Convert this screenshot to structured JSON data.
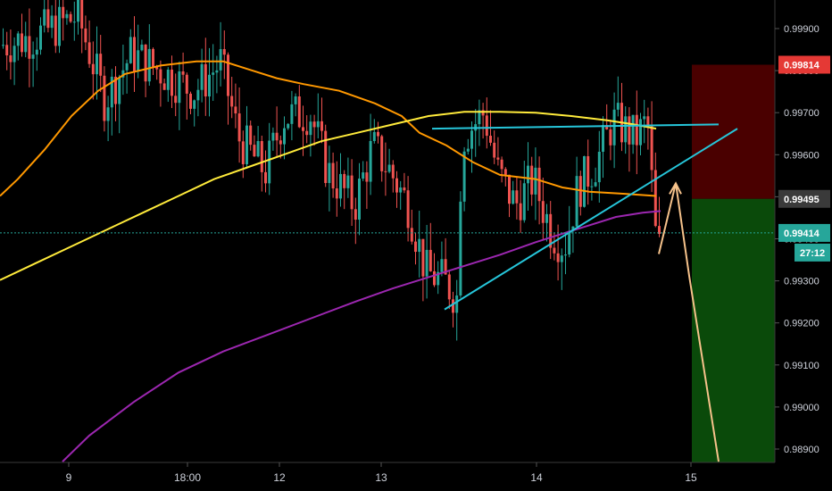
{
  "chart_data": {
    "type": "candlestick",
    "y_ticks": [
      "0.99900",
      "0.99800",
      "0.99700",
      "0.99600",
      "0.99500",
      "0.99400",
      "0.99300",
      "0.99200",
      "0.99100",
      "0.99000",
      "0.98900"
    ],
    "x_ticks": [
      "9",
      "18:00",
      "12",
      "13",
      "14",
      "15",
      "15"
    ],
    "ylim": [
      0.98862,
      0.99958
    ],
    "price_badges": [
      {
        "label": "0.99814",
        "value": 0.99814,
        "color": "#e53935",
        "text_color": "#ffffff"
      },
      {
        "label": "0.99495",
        "value": 0.99495,
        "color": "#3a3a3a",
        "text_color": "#ffffff"
      },
      {
        "label": "0.99414",
        "value": 0.99414,
        "color": "#26a69a",
        "text_color": "#ffffff"
      }
    ],
    "countdown": "27:12",
    "current_price": 0.99414,
    "risk_reward": {
      "stop": 0.99814,
      "entry": 0.99495,
      "target": 0.9887,
      "stop_color": "#4a0000",
      "target_color": "#0a4a0a"
    },
    "colors": {
      "up": "#26a69a",
      "down": "#ef5350",
      "ma_orange": "#ff9800",
      "ma_yellow": "#ffeb3b",
      "ma_purple": "#9c27b0",
      "trendline": "#26c6da",
      "projection": "#f6c28b",
      "background": "#000000",
      "axis_text": "#cfd3dc"
    },
    "series": [
      {
        "kind": "moving_average",
        "color_key": "ma_orange",
        "points": [
          [
            0,
            0.99502
          ],
          [
            20,
            0.99542
          ],
          [
            50,
            0.99612
          ],
          [
            80,
            0.99692
          ],
          [
            110,
            0.99752
          ],
          [
            140,
            0.99792
          ],
          [
            180,
            0.99812
          ],
          [
            220,
            0.99822
          ],
          [
            250,
            0.99822
          ],
          [
            280,
            0.99802
          ],
          [
            310,
            0.99782
          ],
          [
            340,
            0.99768
          ],
          [
            380,
            0.99752
          ],
          [
            420,
            0.99722
          ],
          [
            450,
            0.99692
          ],
          [
            470,
            0.99652
          ],
          [
            500,
            0.99622
          ],
          [
            530,
            0.99582
          ],
          [
            560,
            0.99552
          ],
          [
            600,
            0.99542
          ],
          [
            630,
            0.99522
          ],
          [
            660,
            0.99512
          ],
          [
            700,
            0.99507
          ],
          [
            735,
            0.99502
          ]
        ]
      },
      {
        "kind": "moving_average",
        "color_key": "ma_yellow",
        "points": [
          [
            0,
            0.99302
          ],
          [
            40,
            0.99342
          ],
          [
            80,
            0.99382
          ],
          [
            120,
            0.99422
          ],
          [
            160,
            0.99462
          ],
          [
            200,
            0.99502
          ],
          [
            240,
            0.99542
          ],
          [
            280,
            0.99572
          ],
          [
            320,
            0.99602
          ],
          [
            360,
            0.99632
          ],
          [
            400,
            0.99652
          ],
          [
            440,
            0.99672
          ],
          [
            480,
            0.99692
          ],
          [
            520,
            0.99702
          ],
          [
            560,
            0.99702
          ],
          [
            600,
            0.997
          ],
          [
            640,
            0.99692
          ],
          [
            680,
            0.99682
          ],
          [
            710,
            0.99672
          ],
          [
            735,
            0.99662
          ]
        ]
      },
      {
        "kind": "moving_average",
        "color_key": "ma_purple",
        "points": [
          [
            70,
            0.9887
          ],
          [
            100,
            0.98932
          ],
          [
            150,
            0.99012
          ],
          [
            200,
            0.99082
          ],
          [
            250,
            0.99132
          ],
          [
            300,
            0.99172
          ],
          [
            350,
            0.99212
          ],
          [
            400,
            0.99252
          ],
          [
            440,
            0.99282
          ],
          [
            470,
            0.99302
          ],
          [
            500,
            0.99322
          ],
          [
            530,
            0.99342
          ],
          [
            560,
            0.99362
          ],
          [
            600,
            0.99392
          ],
          [
            630,
            0.99412
          ],
          [
            660,
            0.99432
          ],
          [
            690,
            0.99452
          ],
          [
            720,
            0.99462
          ],
          [
            740,
            0.99466
          ]
        ]
      }
    ],
    "trendlines": [
      {
        "name": "resistance",
        "from": [
          484,
          0.99662
        ],
        "to": [
          805,
          0.99672
        ]
      },
      {
        "name": "support",
        "from": [
          498,
          0.99232
        ],
        "to": [
          826,
          0.99662
        ]
      }
    ],
    "projection": [
      [
        738,
        0.99364
      ],
      [
        757,
        0.99532
      ],
      [
        772,
        0.99312
      ],
      [
        805,
        0.9887
      ]
    ]
  }
}
